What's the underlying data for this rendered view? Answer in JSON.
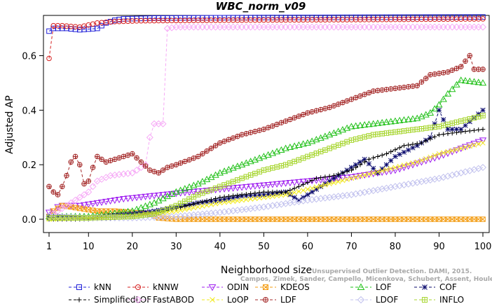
{
  "chart_data": {
    "type": "line",
    "title": "WBC_norm_v09",
    "xlabel": "Neighborhood size",
    "ylabel": "Adjusted AP",
    "xlim": [
      1,
      100
    ],
    "ylim": [
      0,
      0.74
    ],
    "xticks": [
      "1",
      "10",
      "20",
      "30",
      "40",
      "50",
      "60",
      "70",
      "80",
      "90",
      "100"
    ],
    "yticks": [
      "0.0",
      "0.2",
      "0.4",
      "0.6"
    ],
    "grid": false,
    "legend_position": "bottom",
    "credit_lines": [
      "Unsupervised Outlier Detection. DAMI, 2015.",
      "Campos, Zimek, Sander, Campello, Micenkova, Schubert, Assent, Houle"
    ],
    "series": [
      {
        "name": "kNN",
        "color": "#1f1fd8",
        "marker": "square",
        "points": [
          [
            1,
            0.69
          ],
          [
            2,
            0.7
          ],
          [
            5,
            0.7
          ],
          [
            8,
            0.695
          ],
          [
            12,
            0.7
          ],
          [
            14,
            0.72
          ],
          [
            16,
            0.73
          ],
          [
            18,
            0.735
          ],
          [
            25,
            0.738
          ],
          [
            50,
            0.74
          ],
          [
            100,
            0.742
          ]
        ]
      },
      {
        "name": "kNNW",
        "color": "#d62020",
        "marker": "circle",
        "points": [
          [
            1,
            0.59
          ],
          [
            2,
            0.71
          ],
          [
            4,
            0.71
          ],
          [
            8,
            0.705
          ],
          [
            12,
            0.72
          ],
          [
            16,
            0.725
          ],
          [
            22,
            0.728
          ],
          [
            40,
            0.73
          ],
          [
            70,
            0.732
          ],
          [
            100,
            0.735
          ]
        ]
      },
      {
        "name": "ODIN",
        "color": "#a020f0",
        "marker": "triangle-down",
        "points": [
          [
            1,
            0.025
          ],
          [
            2,
            0.03
          ],
          [
            3,
            0.045
          ],
          [
            4,
            0.05
          ],
          [
            8,
            0.05
          ],
          [
            12,
            0.06
          ],
          [
            18,
            0.075
          ],
          [
            24,
            0.085
          ],
          [
            30,
            0.095
          ],
          [
            40,
            0.11
          ],
          [
            50,
            0.125
          ],
          [
            60,
            0.14
          ],
          [
            70,
            0.155
          ],
          [
            80,
            0.18
          ],
          [
            90,
            0.23
          ],
          [
            95,
            0.26
          ],
          [
            100,
            0.29
          ]
        ]
      },
      {
        "name": "KDEOS",
        "color": "#f39c12",
        "marker": "square-x",
        "points": [
          [
            1,
            0.01
          ],
          [
            2,
            0.03
          ],
          [
            4,
            0.05
          ],
          [
            8,
            0.04
          ],
          [
            12,
            0.03
          ],
          [
            16,
            0.03
          ],
          [
            20,
            0.025
          ],
          [
            24,
            0.02
          ],
          [
            26,
            0.005
          ],
          [
            30,
            0.0
          ],
          [
            100,
            0.0
          ]
        ]
      },
      {
        "name": "LOF",
        "color": "#22c11a",
        "marker": "triangle-up",
        "points": [
          [
            1,
            0.01
          ],
          [
            10,
            0.01
          ],
          [
            15,
            0.02
          ],
          [
            20,
            0.03
          ],
          [
            25,
            0.06
          ],
          [
            30,
            0.1
          ],
          [
            35,
            0.13
          ],
          [
            40,
            0.17
          ],
          [
            45,
            0.2
          ],
          [
            50,
            0.23
          ],
          [
            55,
            0.26
          ],
          [
            60,
            0.28
          ],
          [
            65,
            0.31
          ],
          [
            70,
            0.34
          ],
          [
            80,
            0.36
          ],
          [
            85,
            0.37
          ],
          [
            88,
            0.39
          ],
          [
            90,
            0.42
          ],
          [
            92,
            0.46
          ],
          [
            95,
            0.51
          ],
          [
            100,
            0.5
          ]
        ]
      },
      {
        "name": "COF",
        "color": "#0b0b6e",
        "marker": "asterisk",
        "points": [
          [
            1,
            0.01
          ],
          [
            10,
            0.005
          ],
          [
            20,
            0.02
          ],
          [
            25,
            0.03
          ],
          [
            30,
            0.045
          ],
          [
            35,
            0.06
          ],
          [
            40,
            0.07
          ],
          [
            45,
            0.085
          ],
          [
            50,
            0.09
          ],
          [
            55,
            0.1
          ],
          [
            58,
            0.07
          ],
          [
            62,
            0.11
          ],
          [
            66,
            0.15
          ],
          [
            70,
            0.19
          ],
          [
            73,
            0.22
          ],
          [
            76,
            0.17
          ],
          [
            80,
            0.23
          ],
          [
            85,
            0.27
          ],
          [
            88,
            0.3
          ],
          [
            90,
            0.4
          ],
          [
            92,
            0.33
          ],
          [
            95,
            0.33
          ],
          [
            100,
            0.4
          ]
        ]
      },
      {
        "name": "SimplifiedLOF",
        "color": "#000000",
        "marker": "plus",
        "points": [
          [
            1,
            0.0
          ],
          [
            10,
            0.0
          ],
          [
            20,
            0.01
          ],
          [
            25,
            0.02
          ],
          [
            30,
            0.04
          ],
          [
            35,
            0.06
          ],
          [
            40,
            0.08
          ],
          [
            45,
            0.09
          ],
          [
            50,
            0.1
          ],
          [
            55,
            0.1
          ],
          [
            58,
            0.12
          ],
          [
            62,
            0.15
          ],
          [
            66,
            0.16
          ],
          [
            70,
            0.18
          ],
          [
            74,
            0.22
          ],
          [
            78,
            0.24
          ],
          [
            82,
            0.27
          ],
          [
            86,
            0.28
          ],
          [
            90,
            0.31
          ],
          [
            95,
            0.32
          ],
          [
            100,
            0.33
          ]
        ]
      },
      {
        "name": "FastABOD",
        "color": "#f6a9f6",
        "marker": "diamond",
        "points": [
          [
            1,
            0.01
          ],
          [
            3,
            0.03
          ],
          [
            5,
            0.05
          ],
          [
            8,
            0.08
          ],
          [
            10,
            0.1
          ],
          [
            12,
            0.14
          ],
          [
            15,
            0.16
          ],
          [
            20,
            0.17
          ],
          [
            23,
            0.2
          ],
          [
            24,
            0.3
          ],
          [
            25,
            0.35
          ],
          [
            27,
            0.35
          ],
          [
            28,
            0.7
          ],
          [
            30,
            0.705
          ],
          [
            50,
            0.705
          ],
          [
            100,
            0.705
          ]
        ]
      },
      {
        "name": "LoOP",
        "color": "#f2ea1d",
        "marker": "cross",
        "points": [
          [
            1,
            0.0
          ],
          [
            10,
            0.005
          ],
          [
            20,
            0.01
          ],
          [
            25,
            0.02
          ],
          [
            30,
            0.03
          ],
          [
            35,
            0.045
          ],
          [
            40,
            0.06
          ],
          [
            45,
            0.07
          ],
          [
            50,
            0.08
          ],
          [
            55,
            0.09
          ],
          [
            60,
            0.11
          ],
          [
            65,
            0.13
          ],
          [
            70,
            0.15
          ],
          [
            75,
            0.17
          ],
          [
            80,
            0.19
          ],
          [
            85,
            0.21
          ],
          [
            90,
            0.24
          ],
          [
            95,
            0.26
          ],
          [
            100,
            0.28
          ]
        ]
      },
      {
        "name": "LDF",
        "color": "#a52a2a",
        "marker": "circle-plus",
        "points": [
          [
            1,
            0.12
          ],
          [
            2,
            0.1
          ],
          [
            3,
            0.09
          ],
          [
            4,
            0.12
          ],
          [
            5,
            0.16
          ],
          [
            6,
            0.21
          ],
          [
            7,
            0.23
          ],
          [
            8,
            0.2
          ],
          [
            9,
            0.13
          ],
          [
            10,
            0.14
          ],
          [
            11,
            0.19
          ],
          [
            12,
            0.23
          ],
          [
            14,
            0.21
          ],
          [
            16,
            0.22
          ],
          [
            18,
            0.23
          ],
          [
            20,
            0.24
          ],
          [
            22,
            0.21
          ],
          [
            24,
            0.18
          ],
          [
            26,
            0.17
          ],
          [
            28,
            0.19
          ],
          [
            30,
            0.2
          ],
          [
            35,
            0.23
          ],
          [
            40,
            0.28
          ],
          [
            45,
            0.31
          ],
          [
            50,
            0.33
          ],
          [
            55,
            0.36
          ],
          [
            60,
            0.39
          ],
          [
            65,
            0.41
          ],
          [
            70,
            0.44
          ],
          [
            75,
            0.47
          ],
          [
            80,
            0.48
          ],
          [
            85,
            0.49
          ],
          [
            88,
            0.53
          ],
          [
            92,
            0.54
          ],
          [
            95,
            0.56
          ],
          [
            97,
            0.6
          ],
          [
            98,
            0.55
          ],
          [
            100,
            0.55
          ]
        ]
      },
      {
        "name": "LDOF",
        "color": "#c2c2ee",
        "marker": "diamond-open",
        "points": [
          [
            1,
            0.01
          ],
          [
            10,
            0.005
          ],
          [
            20,
            0.005
          ],
          [
            30,
            0.01
          ],
          [
            40,
            0.025
          ],
          [
            50,
            0.045
          ],
          [
            60,
            0.07
          ],
          [
            70,
            0.09
          ],
          [
            80,
            0.12
          ],
          [
            90,
            0.15
          ],
          [
            95,
            0.17
          ],
          [
            100,
            0.19
          ]
        ]
      },
      {
        "name": "INFLO",
        "color": "#a8d632",
        "marker": "square-cross",
        "points": [
          [
            1,
            0.005
          ],
          [
            10,
            0.005
          ],
          [
            20,
            0.01
          ],
          [
            25,
            0.02
          ],
          [
            30,
            0.05
          ],
          [
            35,
            0.09
          ],
          [
            40,
            0.12
          ],
          [
            45,
            0.15
          ],
          [
            50,
            0.18
          ],
          [
            55,
            0.2
          ],
          [
            60,
            0.23
          ],
          [
            65,
            0.26
          ],
          [
            70,
            0.29
          ],
          [
            75,
            0.31
          ],
          [
            80,
            0.32
          ],
          [
            85,
            0.33
          ],
          [
            90,
            0.34
          ],
          [
            95,
            0.36
          ],
          [
            100,
            0.38
          ]
        ]
      }
    ]
  }
}
